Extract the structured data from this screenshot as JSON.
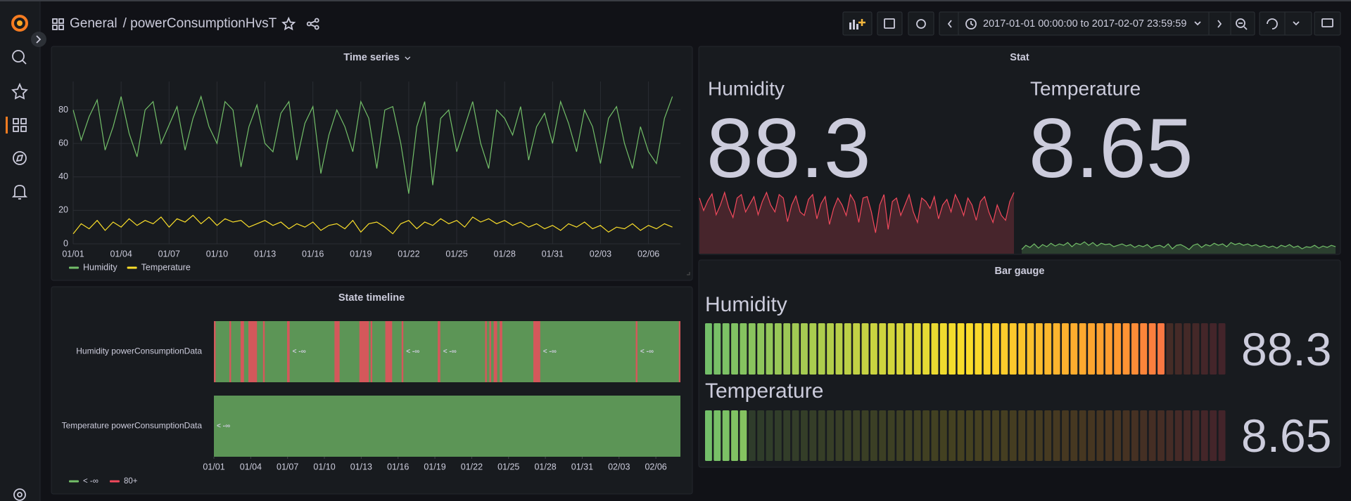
{
  "header": {
    "breadcrumb_root": "General",
    "breadcrumb_page": "/ powerConsumptionHvsT",
    "time_range": "2017-01-01 00:00:00 to 2017-02-07 23:59:59"
  },
  "panels": {
    "time_series": {
      "type": "line",
      "title": "Time series",
      "x": [
        0,
        0.5,
        1,
        1.5,
        2,
        2.5,
        3,
        3.5,
        4,
        4.5,
        5,
        5.5,
        6,
        6.5,
        7,
        7.5,
        8,
        8.5,
        9,
        9.5,
        10,
        10.5,
        11,
        11.5,
        12,
        12.5,
        13,
        13.5,
        14,
        14.5,
        15,
        15.5,
        16,
        16.5,
        17,
        17.5,
        18,
        18.5,
        19,
        19.5,
        20,
        20.5,
        21,
        21.5,
        22,
        22.5,
        23,
        23.5,
        24,
        24.5,
        25,
        25.5,
        26,
        26.5,
        27,
        27.5,
        28,
        28.5,
        29,
        29.5,
        30,
        30.5,
        31,
        31.5,
        32,
        32.5,
        33,
        33.5,
        34,
        34.5,
        35,
        35.5,
        36,
        36.5,
        37,
        37.5
      ],
      "xlim": [
        0,
        38
      ],
      "xticks": [
        {
          "value": 0,
          "label": "01/01"
        },
        {
          "value": 3,
          "label": "01/04"
        },
        {
          "value": 6,
          "label": "01/07"
        },
        {
          "value": 9,
          "label": "01/10"
        },
        {
          "value": 12,
          "label": "01/13"
        },
        {
          "value": 15,
          "label": "01/16"
        },
        {
          "value": 18,
          "label": "01/19"
        },
        {
          "value": 21,
          "label": "01/22"
        },
        {
          "value": 24,
          "label": "01/25"
        },
        {
          "value": 27,
          "label": "01/28"
        },
        {
          "value": 30,
          "label": "01/31"
        },
        {
          "value": 33,
          "label": "02/03"
        },
        {
          "value": 36,
          "label": "02/06"
        }
      ],
      "ylim": [
        0,
        97
      ],
      "yticks": [
        0,
        20,
        40,
        60,
        80
      ],
      "grid": true,
      "series": [
        {
          "name": "Humidity",
          "color": "#73bf69",
          "values": [
            80,
            62,
            76,
            86,
            56,
            70,
            88,
            66,
            52,
            80,
            85,
            60,
            71,
            82,
            56,
            75,
            88,
            70,
            60,
            85,
            80,
            46,
            70,
            83,
            60,
            55,
            78,
            85,
            50,
            72,
            82,
            42,
            65,
            80,
            70,
            55,
            85,
            75,
            45,
            80,
            82,
            60,
            30,
            70,
            85,
            35,
            75,
            80,
            55,
            70,
            85,
            60,
            45,
            80,
            75,
            65,
            82,
            50,
            70,
            78,
            60,
            85,
            72,
            55,
            80,
            70,
            48,
            75,
            82,
            60,
            45,
            70,
            55,
            48,
            75,
            88
          ]
        },
        {
          "name": "Temperature",
          "color": "#fade2a",
          "values": [
            6,
            12,
            9,
            14,
            8,
            13,
            10,
            15,
            11,
            14,
            12,
            16,
            10,
            15,
            13,
            17,
            12,
            16,
            11,
            15,
            13,
            14,
            10,
            12,
            14,
            11,
            13,
            9,
            12,
            10,
            13,
            8,
            11,
            12,
            9,
            14,
            7,
            12,
            13,
            10,
            6,
            12,
            14,
            9,
            13,
            11,
            15,
            12,
            14,
            10,
            16,
            13,
            15,
            12,
            14,
            11,
            13,
            10,
            12,
            9,
            11,
            8,
            12,
            10,
            13,
            9,
            11,
            7,
            10,
            9,
            12,
            8,
            11,
            9,
            12,
            10
          ]
        }
      ]
    },
    "stat": {
      "title": "Stat",
      "items": [
        {
          "name": "Humidity",
          "value": 88.3,
          "color": "#f2495c"
        },
        {
          "name": "Temperature",
          "value": 8.65,
          "color": "#73bf69"
        }
      ]
    },
    "bar_gauge": {
      "title": "Bar gauge",
      "min": 0,
      "max": 100,
      "items": [
        {
          "name": "Humidity",
          "value": 88.3,
          "color": "#f2495c"
        },
        {
          "name": "Temperature",
          "value": 8.65,
          "color": "#73bf69"
        }
      ]
    },
    "state_timeline": {
      "title": "State timeline",
      "xlim": [
        0,
        38
      ],
      "xticks": [
        {
          "value": 0,
          "label": "01/01"
        },
        {
          "value": 3,
          "label": "01/04"
        },
        {
          "value": 6,
          "label": "01/07"
        },
        {
          "value": 9,
          "label": "01/10"
        },
        {
          "value": 12,
          "label": "01/13"
        },
        {
          "value": 15,
          "label": "01/16"
        },
        {
          "value": 18,
          "label": "01/19"
        },
        {
          "value": 21,
          "label": "01/22"
        },
        {
          "value": 24,
          "label": "01/25"
        },
        {
          "value": 27,
          "label": "01/28"
        },
        {
          "value": 30,
          "label": "01/31"
        },
        {
          "value": 33,
          "label": "02/03"
        },
        {
          "value": 36,
          "label": "02/06"
        }
      ],
      "states": [
        {
          "label": "< -∞",
          "color": "#73bf69"
        },
        {
          "label": "80+",
          "color": "#f2495c"
        }
      ],
      "rows": [
        {
          "name": "Humidity powerConsumptionData",
          "segments": [
            [
              0,
              0.14
            ],
            [
              1.26,
              1.4
            ],
            [
              2.17,
              2.45
            ],
            [
              2.81,
              3.51
            ],
            [
              4.0,
              4.14
            ],
            [
              5.96,
              6.17
            ],
            [
              9.82,
              10.24
            ],
            [
              11.85,
              12.62
            ],
            [
              12.76,
              12.9
            ],
            [
              13.96,
              14.52
            ],
            [
              15.29,
              15.43
            ],
            [
              18.23,
              18.44
            ],
            [
              22.09,
              22.23
            ],
            [
              22.44,
              22.58
            ],
            [
              22.79,
              23.07
            ],
            [
              23.28,
              23.49
            ],
            [
              26.02,
              26.58
            ],
            [
              34.36,
              34.5
            ],
            [
              37.87,
              38
            ]
          ]
        },
        {
          "name": "Temperature powerConsumptionData",
          "segments": []
        }
      ]
    }
  }
}
